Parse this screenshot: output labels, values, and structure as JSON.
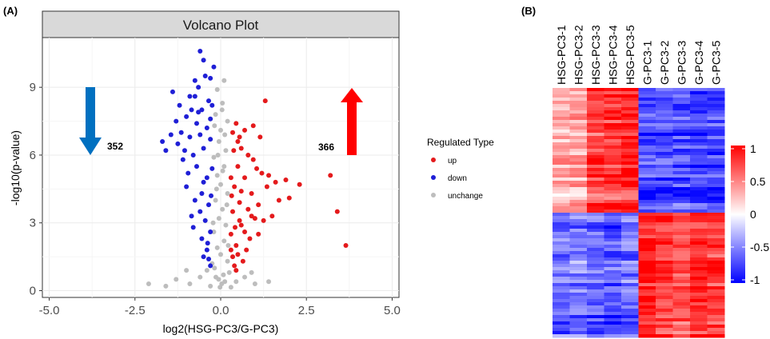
{
  "panels": {
    "a_label": "(A)",
    "b_label": "(B)"
  },
  "chart_data": [
    {
      "type": "scatter",
      "title": "Volcano Plot",
      "xlabel": "log2(HSG-PC3/G-PC3)",
      "ylabel": "-log10(p-value)",
      "xlim": [
        -5.2,
        5.2
      ],
      "ylim": [
        -0.3,
        11.2
      ],
      "x_ticks": [
        "-5.0",
        "-2.5",
        "0.0",
        "2.5",
        "5.0"
      ],
      "y_ticks": [
        "0",
        "3",
        "6",
        "9"
      ],
      "grid": true,
      "legend_position": "right",
      "legend_title": "Regulated Type",
      "legend": [
        {
          "label": "up",
          "color": "#e41a1c"
        },
        {
          "label": "down",
          "color": "#1f1fd6"
        },
        {
          "label": "unchange",
          "color": "#bdbdbd"
        }
      ],
      "annotations": {
        "down_count": "352",
        "up_count": "366",
        "down_arrow_color": "#0070c0",
        "up_arrow_color": "#ff0000"
      },
      "series": [
        {
          "name": "up",
          "color": "#e41a1c",
          "points": [
            [
              1.3,
              8.4
            ],
            [
              0.95,
              7.3
            ],
            [
              0.7,
              7.1
            ],
            [
              0.55,
              6.8
            ],
            [
              1.15,
              6.8
            ],
            [
              0.6,
              6.3
            ],
            [
              1.2,
              5.2
            ],
            [
              1.4,
              5.1
            ],
            [
              1.6,
              4.8
            ],
            [
              1.35,
              4.6
            ],
            [
              1.9,
              4.9
            ],
            [
              2.3,
              4.7
            ],
            [
              2.0,
              4.1
            ],
            [
              1.7,
              4.0
            ],
            [
              1.05,
              5.4
            ],
            [
              0.9,
              4.3
            ],
            [
              1.1,
              3.8
            ],
            [
              0.8,
              3.6
            ],
            [
              0.9,
              3.3
            ],
            [
              1.0,
              3.2
            ],
            [
              1.5,
              3.3
            ],
            [
              1.25,
              3.1
            ],
            [
              0.55,
              3.9
            ],
            [
              0.6,
              2.9
            ],
            [
              0.7,
              2.6
            ],
            [
              0.85,
              2.3
            ],
            [
              0.45,
              2.0
            ],
            [
              0.5,
              1.6
            ],
            [
              0.65,
              1.3
            ],
            [
              0.4,
              1.1
            ],
            [
              0.45,
              0.9
            ],
            [
              0.75,
              1.8
            ],
            [
              1.1,
              2.5
            ],
            [
              0.95,
              5.8
            ],
            [
              0.8,
              6.0
            ],
            [
              0.5,
              5.5
            ],
            [
              0.35,
              7.0
            ],
            [
              0.4,
              4.6
            ],
            [
              0.3,
              5.0
            ],
            [
              0.35,
              3.5
            ],
            [
              0.3,
              2.5
            ],
            [
              0.38,
              6.2
            ],
            [
              3.2,
              5.1
            ],
            [
              3.4,
              3.5
            ],
            [
              3.65,
              2.0
            ],
            [
              0.6,
              4.4
            ],
            [
              0.7,
              5.0
            ],
            [
              0.45,
              7.4
            ],
            [
              0.5,
              6.6
            ],
            [
              0.55,
              3.1
            ],
            [
              0.42,
              2.8
            ],
            [
              0.35,
              1.5
            ],
            [
              0.3,
              1.8
            ],
            [
              0.32,
              4.2
            ]
          ]
        },
        {
          "name": "down",
          "color": "#1f1fd6",
          "points": [
            [
              -0.6,
              10.6
            ],
            [
              -0.5,
              10.2
            ],
            [
              -0.45,
              9.5
            ],
            [
              -0.75,
              9.3
            ],
            [
              -0.3,
              9.4
            ],
            [
              -0.65,
              9.0
            ],
            [
              -0.9,
              8.6
            ],
            [
              -0.35,
              8.4
            ],
            [
              -0.25,
              8.2
            ],
            [
              -1.2,
              8.2
            ],
            [
              -0.85,
              8.0
            ],
            [
              -0.55,
              8.0
            ],
            [
              -1.0,
              7.7
            ],
            [
              -1.3,
              7.5
            ],
            [
              -0.7,
              7.4
            ],
            [
              -0.4,
              7.2
            ],
            [
              -1.45,
              6.9
            ],
            [
              -0.9,
              6.8
            ],
            [
              -1.6,
              6.2
            ],
            [
              -1.7,
              6.6
            ],
            [
              -1.25,
              6.5
            ],
            [
              -0.8,
              6.0
            ],
            [
              -0.5,
              6.3
            ],
            [
              -0.3,
              6.7
            ],
            [
              -1.1,
              5.8
            ],
            [
              -0.7,
              5.5
            ],
            [
              -0.4,
              5.0
            ],
            [
              -1.0,
              4.6
            ],
            [
              -0.55,
              4.3
            ],
            [
              -0.75,
              4.0
            ],
            [
              -0.35,
              3.8
            ],
            [
              -0.6,
              3.5
            ],
            [
              -0.45,
              3.1
            ],
            [
              -0.8,
              2.8
            ],
            [
              -0.3,
              2.6
            ],
            [
              -0.55,
              2.3
            ],
            [
              -0.4,
              1.8
            ],
            [
              -0.35,
              1.4
            ],
            [
              -0.3,
              1.1
            ],
            [
              -0.5,
              1.5
            ],
            [
              -1.4,
              8.8
            ],
            [
              -0.2,
              9.9
            ],
            [
              -0.95,
              5.2
            ],
            [
              -1.15,
              7.0
            ],
            [
              -0.65,
              7.9
            ],
            [
              -0.25,
              5.4
            ],
            [
              -0.28,
              4.2
            ],
            [
              -0.6,
              6.9
            ],
            [
              -0.85,
              3.3
            ],
            [
              -0.38,
              2.1
            ],
            [
              -0.3,
              7.6
            ],
            [
              -0.75,
              8.6
            ],
            [
              -1.05,
              6.2
            ],
            [
              -0.5,
              4.8
            ]
          ]
        },
        {
          "name": "unchange",
          "color": "#bdbdbd",
          "points": [
            [
              0.1,
              9.3
            ],
            [
              -0.1,
              8.9
            ],
            [
              0.05,
              8.3
            ],
            [
              -0.15,
              7.8
            ],
            [
              0.2,
              7.5
            ],
            [
              0.0,
              7.1
            ],
            [
              -0.05,
              6.6
            ],
            [
              0.15,
              6.2
            ],
            [
              -0.2,
              5.9
            ],
            [
              0.1,
              5.5
            ],
            [
              -0.1,
              5.1
            ],
            [
              0.0,
              4.7
            ],
            [
              0.2,
              4.3
            ],
            [
              -0.15,
              4.0
            ],
            [
              0.05,
              3.6
            ],
            [
              -0.05,
              3.2
            ],
            [
              0.15,
              2.9
            ],
            [
              -0.2,
              2.6
            ],
            [
              0.1,
              2.2
            ],
            [
              -0.1,
              1.9
            ],
            [
              0.0,
              1.6
            ],
            [
              0.2,
              1.3
            ],
            [
              -0.18,
              1.0
            ],
            [
              0.08,
              0.7
            ],
            [
              -0.06,
              0.5
            ],
            [
              0.03,
              0.3
            ],
            [
              -0.02,
              0.15
            ],
            [
              0.12,
              0.4
            ],
            [
              -0.14,
              0.6
            ],
            [
              0.25,
              0.8
            ],
            [
              -0.25,
              1.2
            ],
            [
              0.22,
              2.0
            ],
            [
              -0.22,
              3.0
            ],
            [
              0.18,
              3.8
            ],
            [
              -0.12,
              4.5
            ],
            [
              0.06,
              5.3
            ],
            [
              -0.08,
              6.0
            ],
            [
              0.12,
              6.9
            ],
            [
              -0.18,
              7.3
            ],
            [
              0.04,
              8.0
            ],
            [
              -2.1,
              0.3
            ],
            [
              -1.6,
              0.2
            ],
            [
              -1.3,
              0.5
            ],
            [
              -0.9,
              0.3
            ],
            [
              -0.6,
              0.6
            ],
            [
              1.0,
              0.3
            ],
            [
              1.4,
              0.4
            ],
            [
              0.7,
              0.6
            ],
            [
              -0.4,
              0.9
            ],
            [
              0.45,
              0.4
            ],
            [
              -0.3,
              0.2
            ],
            [
              0.3,
              0.15
            ],
            [
              -1.0,
              0.9
            ],
            [
              0.9,
              0.8
            ]
          ]
        }
      ]
    },
    {
      "type": "heatmap",
      "columns": [
        "HSG-PC3-1",
        "HSG-PC3-2",
        "HSG-PC3-3",
        "HSG-PC3-4",
        "HSG-PC3-5",
        "G-PC3-1",
        "G-PC3-2",
        "G-PC3-3",
        "G-PC3-4",
        "G-PC3-5"
      ],
      "groups": [
        {
          "name": "upper cluster",
          "row_fraction": 0.5,
          "levels": [
            0.3,
            0.35,
            0.75,
            0.8,
            0.85,
            -0.7,
            -0.7,
            -0.7,
            -0.75,
            -0.75
          ]
        },
        {
          "name": "lower cluster",
          "row_fraction": 0.5,
          "levels": [
            -0.6,
            -0.55,
            -0.65,
            -0.7,
            -0.6,
            0.85,
            0.7,
            0.65,
            0.8,
            0.75
          ]
        }
      ],
      "colorbar": {
        "ticks": [
          "1",
          "0.5",
          "0",
          "-0.5",
          "-1"
        ],
        "range": [
          -1,
          1
        ],
        "colors": {
          "low": "#0000ff",
          "mid": "#ffffff",
          "high": "#ff0000"
        }
      }
    }
  ]
}
